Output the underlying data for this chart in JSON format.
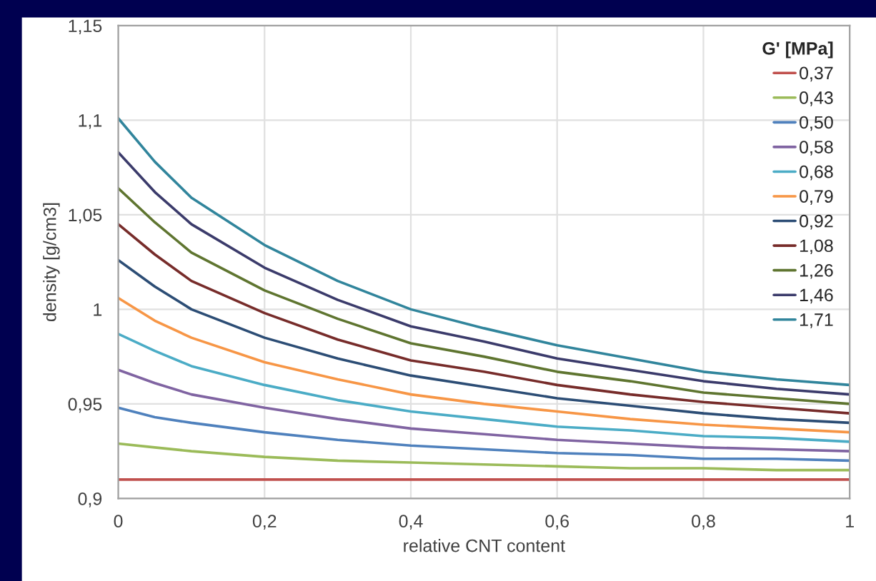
{
  "chart_data": {
    "type": "line",
    "xlabel": "relative CNT content",
    "ylabel": "density [g/cm3]",
    "legend_title": "G' [MPa]",
    "x": [
      0,
      0.05,
      0.1,
      0.2,
      0.3,
      0.4,
      0.5,
      0.6,
      0.7,
      0.8,
      0.9,
      1.0
    ],
    "series": [
      {
        "name": "0,37",
        "color": "#c0504d",
        "values": [
          0.91,
          0.91,
          0.91,
          0.91,
          0.91,
          0.91,
          0.91,
          0.91,
          0.91,
          0.91,
          0.91,
          0.91
        ]
      },
      {
        "name": "0,43",
        "color": "#9bbb59",
        "values": [
          0.929,
          0.927,
          0.925,
          0.922,
          0.92,
          0.919,
          0.918,
          0.917,
          0.916,
          0.916,
          0.915,
          0.915
        ]
      },
      {
        "name": "0,50",
        "color": "#4f81bd",
        "values": [
          0.948,
          0.943,
          0.94,
          0.935,
          0.931,
          0.928,
          0.926,
          0.924,
          0.923,
          0.921,
          0.921,
          0.92
        ]
      },
      {
        "name": "0,58",
        "color": "#8064a2",
        "values": [
          0.968,
          0.961,
          0.955,
          0.948,
          0.942,
          0.937,
          0.934,
          0.931,
          0.929,
          0.927,
          0.926,
          0.925
        ]
      },
      {
        "name": "0,68",
        "color": "#4bacc6",
        "values": [
          0.987,
          0.978,
          0.97,
          0.96,
          0.952,
          0.946,
          0.942,
          0.938,
          0.936,
          0.933,
          0.932,
          0.93
        ]
      },
      {
        "name": "0,79",
        "color": "#f79646",
        "values": [
          1.006,
          0.994,
          0.985,
          0.972,
          0.963,
          0.955,
          0.95,
          0.946,
          0.942,
          0.939,
          0.937,
          0.935
        ]
      },
      {
        "name": "0,92",
        "color": "#2c4d75",
        "values": [
          1.026,
          1.012,
          1.0,
          0.985,
          0.974,
          0.965,
          0.959,
          0.953,
          0.949,
          0.945,
          0.942,
          0.94
        ]
      },
      {
        "name": "1,08",
        "color": "#772c2a",
        "values": [
          1.045,
          1.029,
          1.015,
          0.998,
          0.984,
          0.973,
          0.967,
          0.96,
          0.955,
          0.951,
          0.948,
          0.945
        ]
      },
      {
        "name": "1,26",
        "color": "#5f7530",
        "values": [
          1.064,
          1.046,
          1.03,
          1.01,
          0.995,
          0.982,
          0.975,
          0.967,
          0.962,
          0.956,
          0.953,
          0.95
        ]
      },
      {
        "name": "1,46",
        "color": "#3b3b6b",
        "values": [
          1.083,
          1.062,
          1.045,
          1.022,
          1.005,
          0.991,
          0.983,
          0.974,
          0.968,
          0.962,
          0.958,
          0.955
        ]
      },
      {
        "name": "1,71",
        "color": "#31859c",
        "values": [
          1.101,
          1.078,
          1.059,
          1.034,
          1.015,
          1.0,
          0.99,
          0.981,
          0.974,
          0.967,
          0.963,
          0.96
        ]
      }
    ],
    "xlim": [
      0,
      1
    ],
    "ylim": [
      0.9,
      1.15
    ],
    "xticks": [
      {
        "value": 0,
        "label": "0"
      },
      {
        "value": 0.2,
        "label": "0,2"
      },
      {
        "value": 0.4,
        "label": "0,4"
      },
      {
        "value": 0.6,
        "label": "0,6"
      },
      {
        "value": 0.8,
        "label": "0,8"
      },
      {
        "value": 1,
        "label": "1"
      }
    ],
    "yticks": [
      {
        "value": 0.9,
        "label": "0,9"
      },
      {
        "value": 0.95,
        "label": "0,95"
      },
      {
        "value": 1,
        "label": "1"
      },
      {
        "value": 1.05,
        "label": "1,05"
      },
      {
        "value": 1.1,
        "label": "1,1"
      },
      {
        "value": 1.15,
        "label": "1,15"
      }
    ],
    "grid": true,
    "legend": "top right",
    "marker": "none",
    "line_style": "solid"
  }
}
